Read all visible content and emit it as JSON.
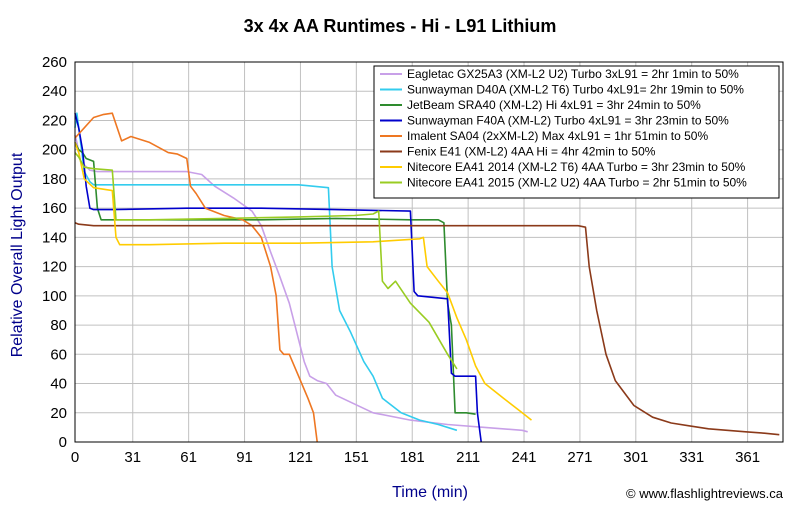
{
  "chart_data": {
    "type": "line",
    "title": "3x 4x AA Runtimes - Hi - L91 Lithium",
    "xlabel": "Time (min)",
    "ylabel": "Relative Overall Light Output",
    "credit": "© www.flashlightreviews.ca",
    "xlim": [
      0,
      380
    ],
    "ylim": [
      0,
      260
    ],
    "xticks": [
      0,
      31,
      61,
      91,
      121,
      151,
      181,
      211,
      241,
      271,
      301,
      331,
      361
    ],
    "yticks": [
      0,
      20,
      40,
      60,
      80,
      100,
      120,
      140,
      160,
      180,
      200,
      220,
      240,
      260
    ],
    "grid": true,
    "legend_position": "top-right",
    "colors": {
      "axis_label": "#00008b",
      "frame": "#000000",
      "grid": "#c0c0c0"
    },
    "series": [
      {
        "name": "Eagletac GX25A3 (XM-L2 U2) Turbo 3xL91 = 2hr 1min to 50%",
        "color": "#c8a0e8",
        "x": [
          0,
          1,
          3,
          8,
          12,
          20,
          40,
          60,
          68,
          75,
          85,
          95,
          100,
          105,
          110,
          115,
          120,
          123,
          126,
          130,
          135,
          140,
          160,
          180,
          200,
          220,
          240,
          243
        ],
        "y": [
          210,
          205,
          192,
          186,
          185,
          185,
          185,
          185,
          183,
          175,
          167,
          158,
          148,
          130,
          113,
          95,
          70,
          55,
          45,
          42,
          40,
          32,
          20,
          15,
          12,
          10,
          8,
          7
        ]
      },
      {
        "name": "Sunwayman D40A (XM-L2 T6) Turbo 4xL91= 2hr 19min to 50%",
        "color": "#33ccee",
        "x": [
          0,
          1,
          3,
          5,
          8,
          10,
          20,
          40,
          80,
          120,
          136,
          138,
          142,
          148,
          155,
          160,
          165,
          175,
          185,
          195,
          205
        ],
        "y": [
          215,
          225,
          205,
          185,
          178,
          176,
          176,
          176,
          176,
          176,
          174,
          120,
          90,
          75,
          55,
          45,
          30,
          20,
          15,
          12,
          8
        ]
      },
      {
        "name": "JetBeam SRA40 (XM-L2) Hi 4xL91 = 3hr 24min to 50%",
        "color": "#2e8b2e",
        "x": [
          0,
          2,
          4,
          6,
          10,
          12,
          14,
          20,
          60,
          100,
          140,
          180,
          195,
          198,
          200,
          202,
          204,
          210,
          215
        ],
        "y": [
          205,
          200,
          198,
          194,
          192,
          160,
          152,
          152,
          152,
          152,
          153,
          152,
          152,
          150,
          95,
          80,
          20,
          20,
          19
        ]
      },
      {
        "name": "Sunwayman F40A (XM-L2) Turbo 4xL91 = 3hr 23min to 50%",
        "color": "#0000cc",
        "x": [
          0,
          2,
          4,
          6,
          8,
          10,
          20,
          60,
          100,
          140,
          180,
          182,
          184,
          200,
          202,
          204,
          215,
          216,
          218
        ],
        "y": [
          225,
          215,
          200,
          175,
          160,
          159,
          159,
          160,
          160,
          159,
          158,
          103,
          100,
          98,
          47,
          45,
          45,
          20,
          0
        ]
      },
      {
        "name": "Imalent SA04 (2xXM-L2) Max 4xL91 = 1hr 51min to 50%",
        "color": "#ee7722",
        "x": [
          0,
          5,
          10,
          15,
          20,
          25,
          30,
          40,
          50,
          55,
          60,
          62,
          65,
          70,
          80,
          90,
          95,
          100,
          105,
          108,
          110,
          112,
          115,
          120,
          125,
          128,
          130
        ],
        "y": [
          208,
          215,
          222,
          224,
          225,
          206,
          209,
          205,
          198,
          197,
          194,
          175,
          170,
          160,
          155,
          152,
          148,
          140,
          120,
          100,
          63,
          60,
          60,
          45,
          30,
          20,
          0
        ]
      },
      {
        "name": "Fenix E41 (XM-L2) 4AA Hi = 4hr 42min to 50%",
        "color": "#8b3a1a",
        "x": [
          0,
          2,
          10,
          50,
          100,
          150,
          200,
          250,
          270,
          274,
          276,
          280,
          285,
          290,
          300,
          310,
          320,
          330,
          340,
          350,
          360,
          370,
          378
        ],
        "y": [
          150,
          149,
          148,
          148,
          148,
          148,
          148,
          148,
          148,
          147,
          120,
          90,
          60,
          42,
          25,
          17,
          13,
          11,
          9,
          8,
          7,
          6,
          5
        ]
      },
      {
        "name": "Nitecore EA41 2014 (XM-L2 T6) 4AA Turbo = 3hr 23min to 50%",
        "color": "#ffcc00",
        "x": [
          0,
          2,
          5,
          10,
          20,
          22,
          24,
          40,
          80,
          120,
          160,
          185,
          187,
          189,
          195,
          200,
          205,
          210,
          215,
          220,
          230,
          240,
          245
        ],
        "y": [
          205,
          198,
          180,
          174,
          172,
          140,
          135,
          135,
          136,
          136,
          137,
          139,
          140,
          120,
          110,
          102,
          85,
          70,
          52,
          40,
          30,
          20,
          15
        ]
      },
      {
        "name": "Nitecore EA41 2015 (XM-L2 U2) 4AA Turbo = 2hr 51min to 50%",
        "color": "#99cc22",
        "x": [
          0,
          2,
          5,
          10,
          20,
          22,
          25,
          40,
          80,
          120,
          150,
          160,
          163,
          165,
          168,
          172,
          180,
          190,
          200,
          205
        ],
        "y": [
          198,
          195,
          188,
          187,
          186,
          152,
          152,
          152,
          153,
          154,
          155,
          156,
          158,
          110,
          105,
          110,
          95,
          82,
          60,
          50
        ]
      }
    ]
  }
}
